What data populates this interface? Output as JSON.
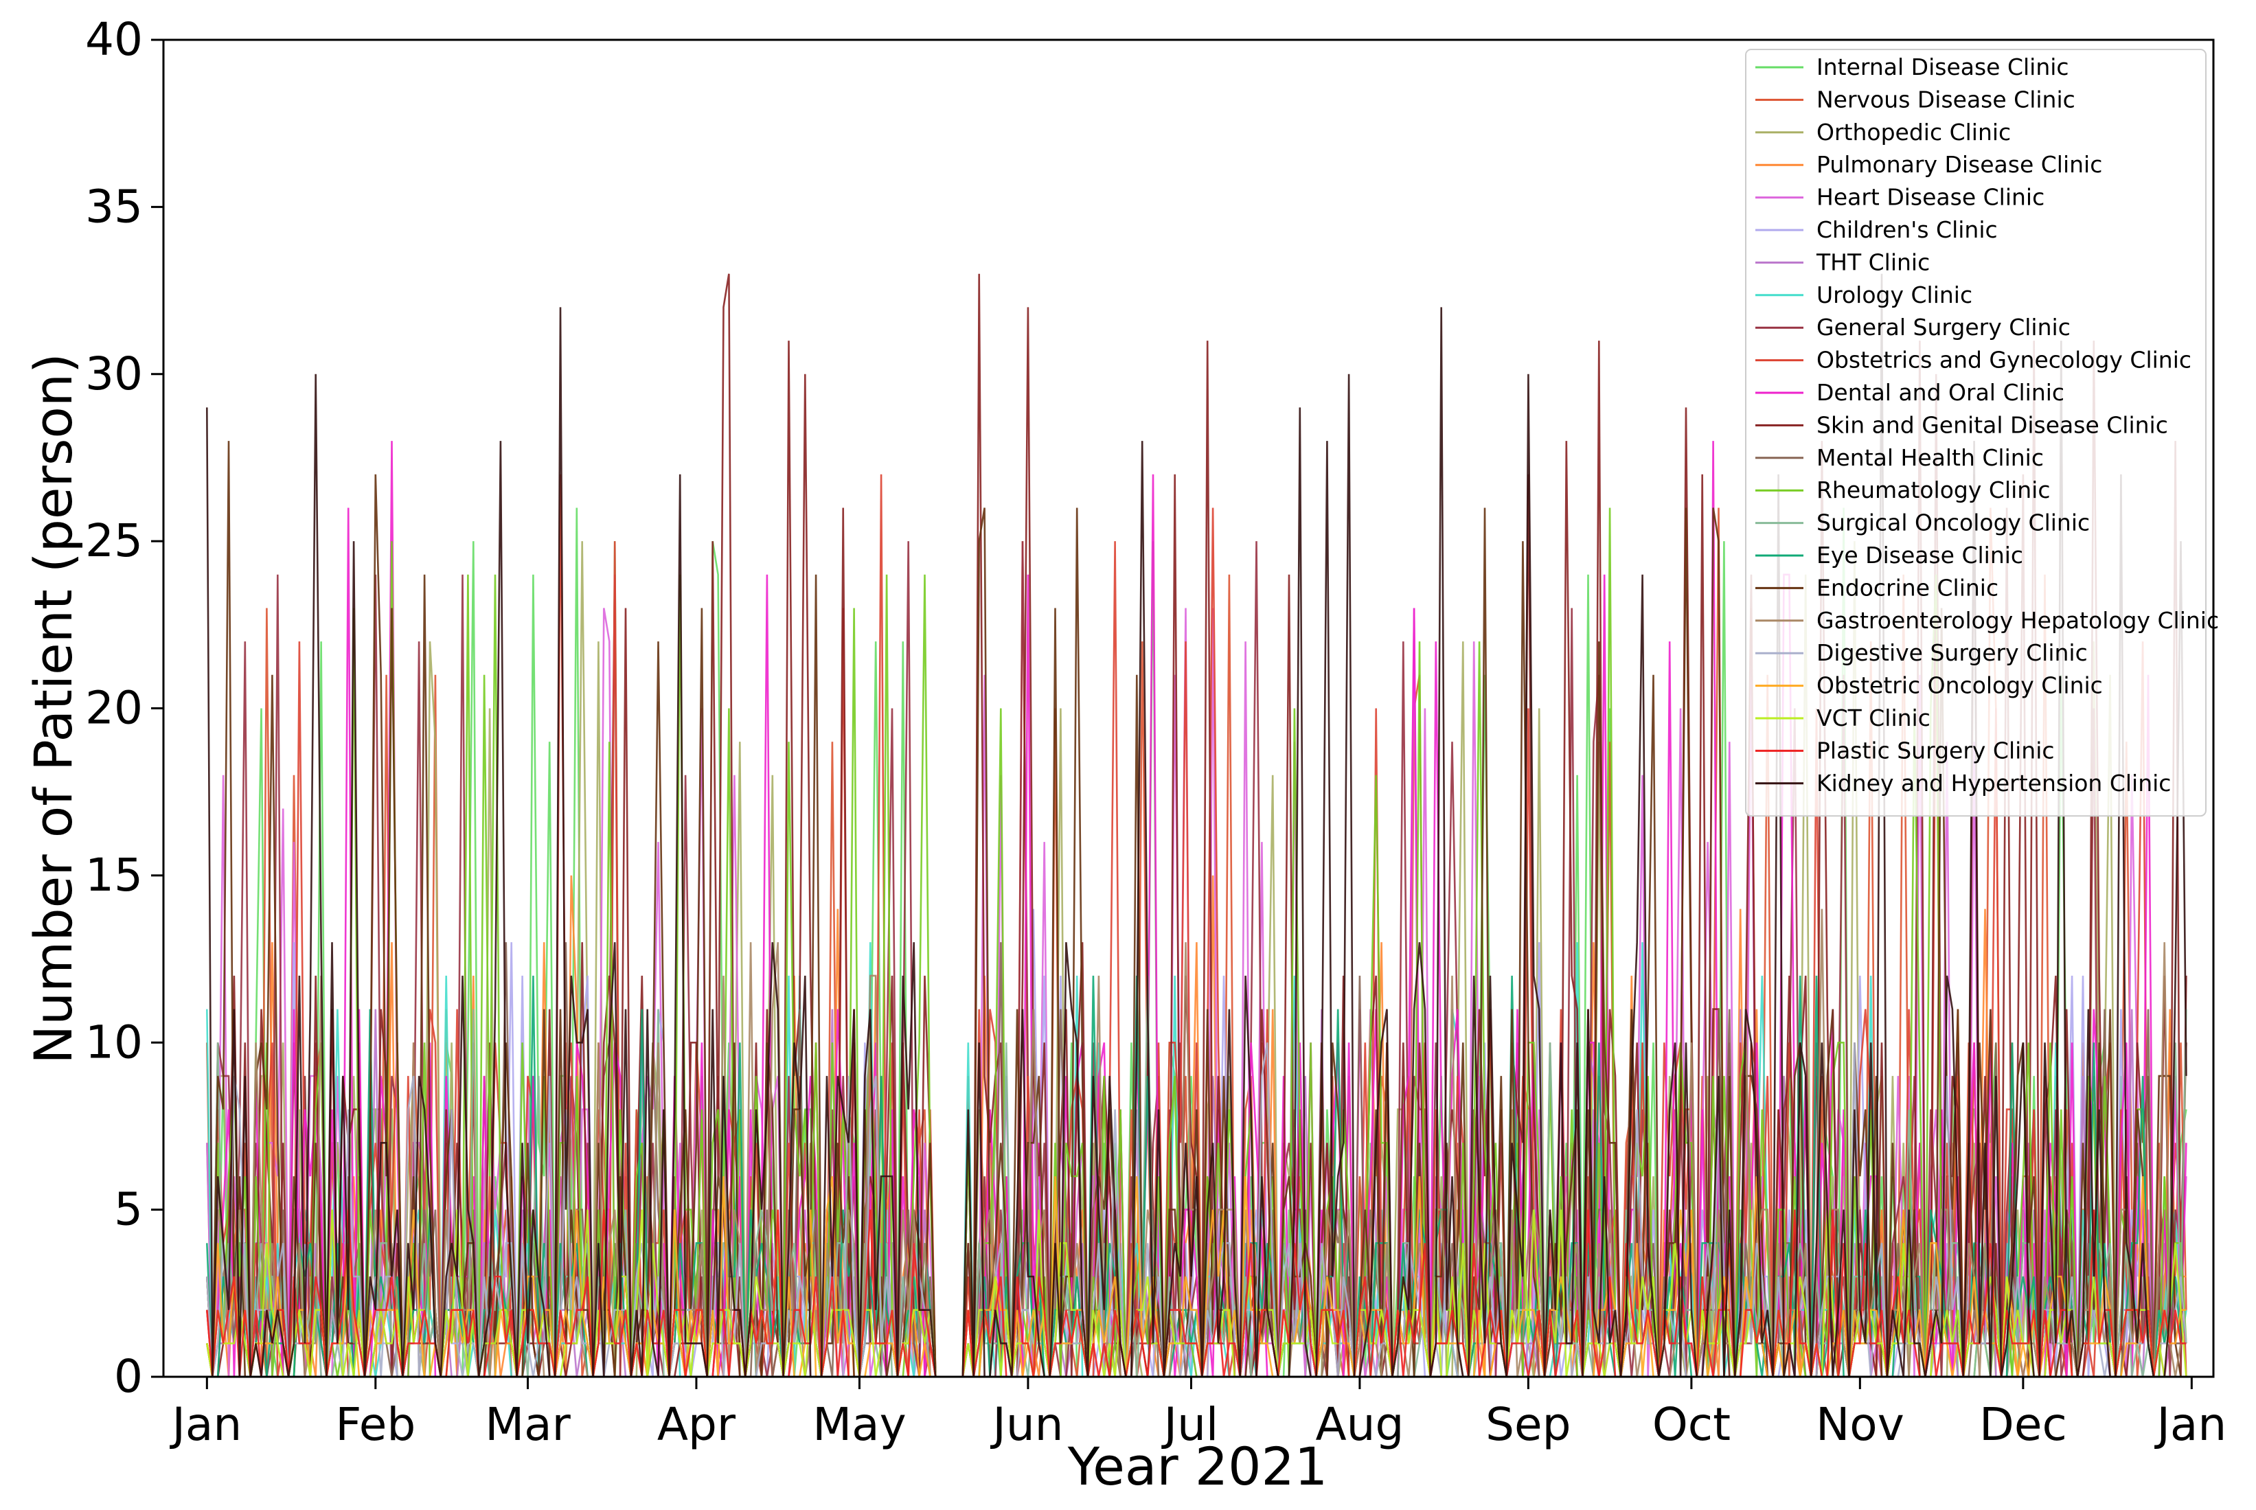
{
  "chart_data": {
    "type": "line",
    "title": "",
    "xlabel": "Year 2021",
    "ylabel": "Number of Patient (person)",
    "x_range": [
      "2021-01-01",
      "2021-12-31"
    ],
    "xlim": [
      "2020-12-24",
      "2022-01-05"
    ],
    "ylim": [
      0,
      40
    ],
    "y_ticks": [
      0,
      5,
      10,
      15,
      20,
      25,
      30,
      35,
      40
    ],
    "x_ticks": [
      {
        "date": "2021-01-01",
        "label": "Jan"
      },
      {
        "date": "2021-02-01",
        "label": "Feb"
      },
      {
        "date": "2021-03-01",
        "label": "Mar"
      },
      {
        "date": "2021-04-01",
        "label": "Apr"
      },
      {
        "date": "2021-05-01",
        "label": "May"
      },
      {
        "date": "2021-06-01",
        "label": "Jun"
      },
      {
        "date": "2021-07-01",
        "label": "Jul"
      },
      {
        "date": "2021-08-01",
        "label": "Aug"
      },
      {
        "date": "2021-09-01",
        "label": "Sep"
      },
      {
        "date": "2021-10-01",
        "label": "Oct"
      },
      {
        "date": "2021-11-01",
        "label": "Nov"
      },
      {
        "date": "2021-12-01",
        "label": "Dec"
      },
      {
        "date": "2022-01-01",
        "label": "Jan"
      }
    ],
    "grid": false,
    "legend_position": "top-right",
    "series": [
      {
        "name": "Internal Disease Clinic",
        "color": "#66dd66",
        "peak": 26
      },
      {
        "name": "Nervous Disease Clinic",
        "color": "#dd5533",
        "peak": 26
      },
      {
        "name": "Orthopedic Clinic",
        "color": "#aab066",
        "peak": 25
      },
      {
        "name": "Pulmonary Disease Clinic",
        "color": "#ff8833",
        "peak": 15
      },
      {
        "name": "Heart Disease Clinic",
        "color": "#dd66dd",
        "peak": 23
      },
      {
        "name": "Children's Clinic",
        "color": "#b0aaee",
        "peak": 14
      },
      {
        "name": "THT Clinic",
        "color": "#bb77cc",
        "peak": 12
      },
      {
        "name": "Urology Clinic",
        "color": "#44ddcc",
        "peak": 13
      },
      {
        "name": "General Surgery Clinic",
        "color": "#993344",
        "peak": 26
      },
      {
        "name": "Obstetrics and Gynecology Clinic",
        "color": "#dd4433",
        "peak": 28
      },
      {
        "name": "Dental and Oral Clinic",
        "color": "#ee22cc",
        "peak": 28
      },
      {
        "name": "Skin and Genital Disease Clinic",
        "color": "#882222",
        "peak": 33
      },
      {
        "name": "Mental Health Clinic",
        "color": "#886655",
        "peak": 14
      },
      {
        "name": "Rheumatology Clinic",
        "color": "#77cc22",
        "peak": 26
      },
      {
        "name": "Surgical Oncology Clinic",
        "color": "#88bb99",
        "peak": 12
      },
      {
        "name": "Eye Disease Clinic",
        "color": "#11aa77",
        "peak": 12
      },
      {
        "name": "Endocrine Clinic",
        "color": "#663311",
        "peak": 28
      },
      {
        "name": "Gastroenterology Hepatology Clinic",
        "color": "#aa8866",
        "peak": 14
      },
      {
        "name": "Digestive Surgery Clinic",
        "color": "#aab0cc",
        "peak": 10
      },
      {
        "name": "Obstetric Oncology Clinic",
        "color": "#ffaa22",
        "peak": 6
      },
      {
        "name": "VCT Clinic",
        "color": "#bbee22",
        "peak": 5
      },
      {
        "name": "Plastic Surgery Clinic",
        "color": "#ee2222",
        "peak": 5
      },
      {
        "name": "Kidney and Hypertension Clinic",
        "color": "#331111",
        "peak": 33
      }
    ]
  }
}
